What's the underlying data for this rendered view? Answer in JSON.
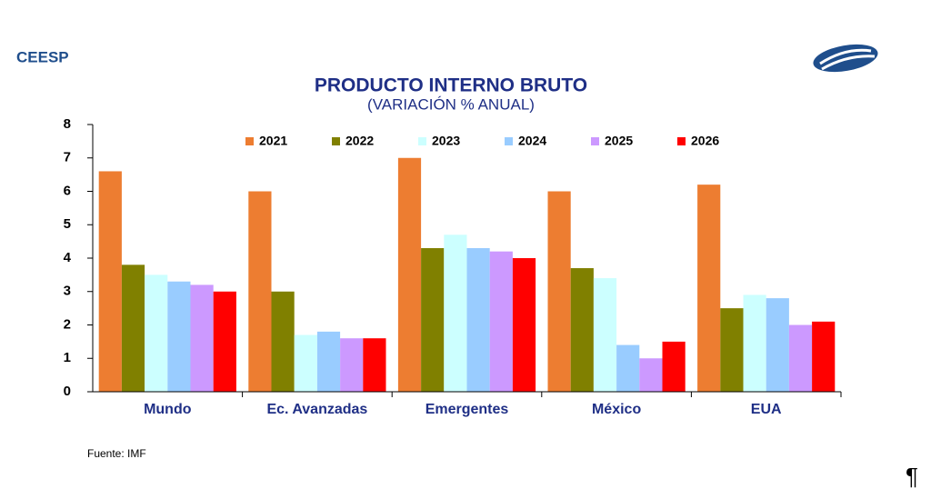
{
  "brand": "CEESP",
  "source": "Fuente: IMF",
  "footer_mark": "¶",
  "chart_data": {
    "type": "bar",
    "title": "PRODUCTO INTERNO BRUTO",
    "subtitle": "(VARIACIÓN % ANUAL)",
    "categories": [
      "Mundo",
      "Ec. Avanzadas",
      "Emergentes",
      "México",
      "EUA"
    ],
    "series": [
      {
        "name": "2021",
        "color": "#ED7D31",
        "values": [
          6.6,
          6.0,
          7.0,
          6.0,
          6.2
        ]
      },
      {
        "name": "2022",
        "color": "#808000",
        "values": [
          3.8,
          3.0,
          4.3,
          3.7,
          2.5
        ]
      },
      {
        "name": "2023",
        "color": "#CCFFFF",
        "values": [
          3.5,
          1.7,
          4.7,
          3.4,
          2.9
        ]
      },
      {
        "name": "2024",
        "color": "#99CCFF",
        "values": [
          3.3,
          1.8,
          4.3,
          1.4,
          2.8
        ]
      },
      {
        "name": "2025",
        "color": "#CC99FF",
        "values": [
          3.2,
          1.6,
          4.2,
          1.0,
          2.0
        ]
      },
      {
        "name": "2026",
        "color": "#FF0000",
        "values": [
          3.0,
          1.6,
          4.0,
          1.5,
          2.1
        ]
      }
    ],
    "ylim": [
      0,
      8
    ],
    "yticks": [
      0,
      1,
      2,
      3,
      4,
      5,
      6,
      7,
      8
    ],
    "grid": false,
    "legend": "top"
  }
}
